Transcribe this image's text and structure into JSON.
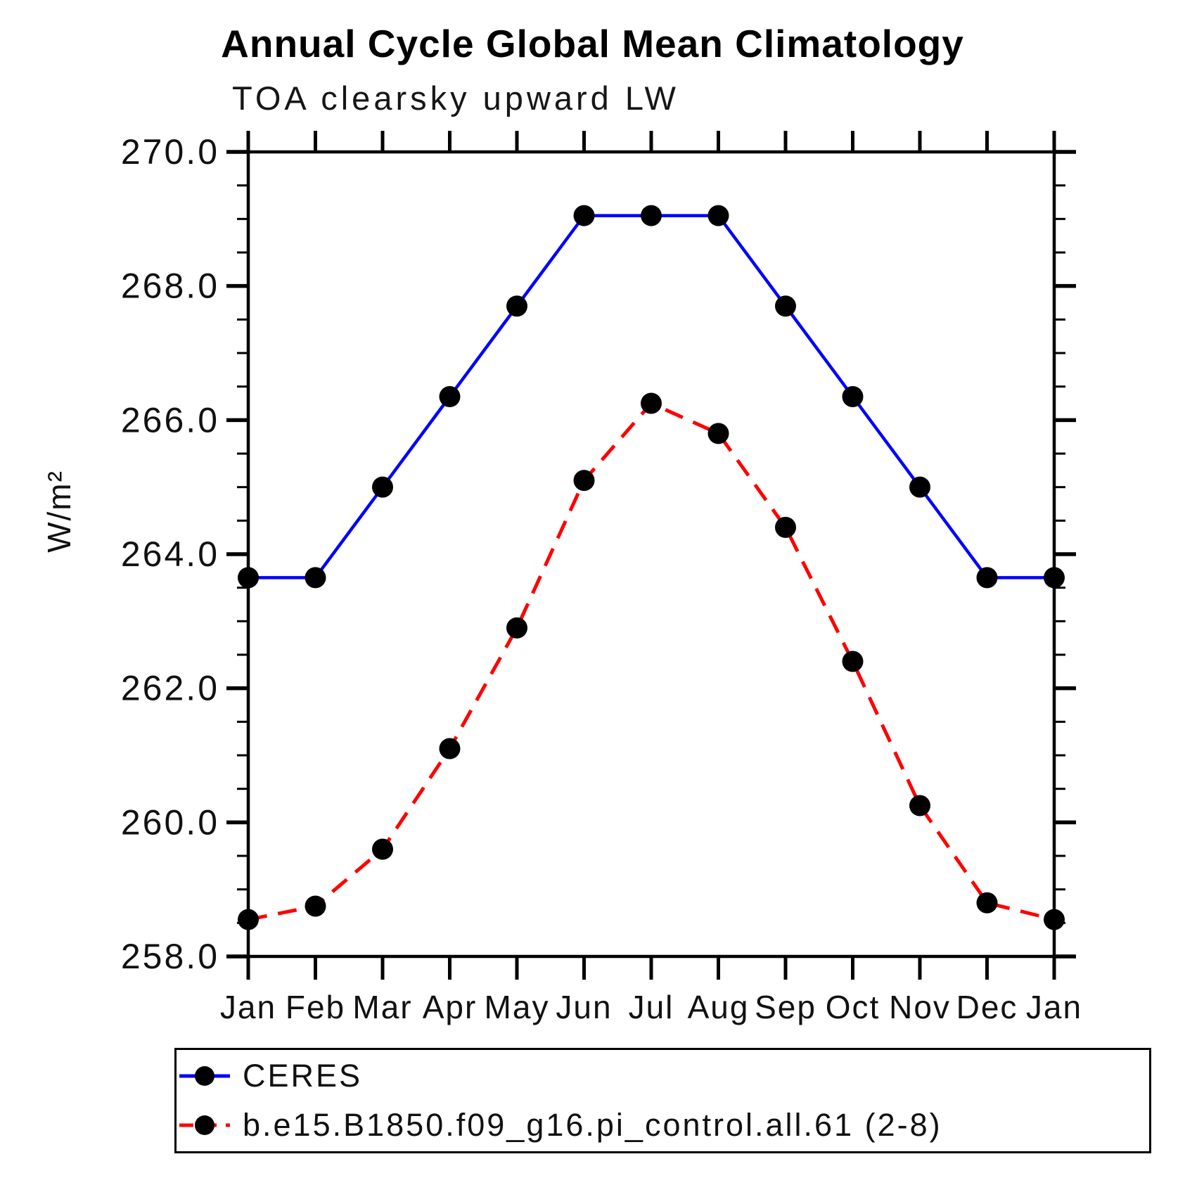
{
  "title": "Annual Cycle Global Mean Climatology",
  "subtitle": "TOA clearsky upward LW",
  "y_axis": {
    "label": "W/m²",
    "ticks": [
      {
        "value": 258.0,
        "label": "258.0"
      },
      {
        "value": 260.0,
        "label": "260.0"
      },
      {
        "value": 262.0,
        "label": "262.0"
      },
      {
        "value": 264.0,
        "label": "264.0"
      },
      {
        "value": 266.0,
        "label": "266.0"
      },
      {
        "value": 268.0,
        "label": "268.0"
      },
      {
        "value": 270.0,
        "label": "270.0"
      }
    ],
    "minor_step": 0.5
  },
  "x_axis": {
    "tick_labels": [
      "Jan",
      "Feb",
      "Mar",
      "Apr",
      "May",
      "Jun",
      "Jul",
      "Aug",
      "Sep",
      "Oct",
      "Nov",
      "Dec",
      "Jan"
    ]
  },
  "legend": [
    {
      "label": "CERES",
      "color": "#0000ff",
      "style": "solid"
    },
    {
      "label": "b.e15.B1850.f09_g16.pi_control.all.61 (2-8)",
      "color": "#ff0000",
      "style": "dashed"
    }
  ],
  "marker_color": "#000000",
  "chart_data": {
    "type": "line",
    "title": "TOA clearsky upward LW",
    "suptitle": "Annual Cycle Global Mean Climatology",
    "xlabel": "",
    "ylabel": "W/m²",
    "ylim": [
      258.0,
      270.0
    ],
    "grid": false,
    "legend_position": "bottom",
    "categories": [
      "Jan",
      "Feb",
      "Mar",
      "Apr",
      "May",
      "Jun",
      "Jul",
      "Aug",
      "Sep",
      "Oct",
      "Nov",
      "Dec",
      "Jan"
    ],
    "series": [
      {
        "name": "CERES",
        "color": "#0000ff",
        "line_style": "solid",
        "marker": "filled-circle",
        "marker_color": "#000000",
        "values": [
          263.65,
          263.65,
          265.0,
          266.35,
          267.7,
          269.05,
          269.05,
          269.05,
          267.7,
          266.35,
          265.0,
          263.65,
          263.65
        ]
      },
      {
        "name": "b.e15.B1850.f09_g16.pi_control.all.61 (2-8)",
        "color": "#ff0000",
        "line_style": "dashed",
        "marker": "filled-circle",
        "marker_color": "#000000",
        "values": [
          258.55,
          258.75,
          259.6,
          261.1,
          262.9,
          265.1,
          266.25,
          265.8,
          264.4,
          262.4,
          260.25,
          258.8,
          258.55
        ]
      }
    ]
  }
}
